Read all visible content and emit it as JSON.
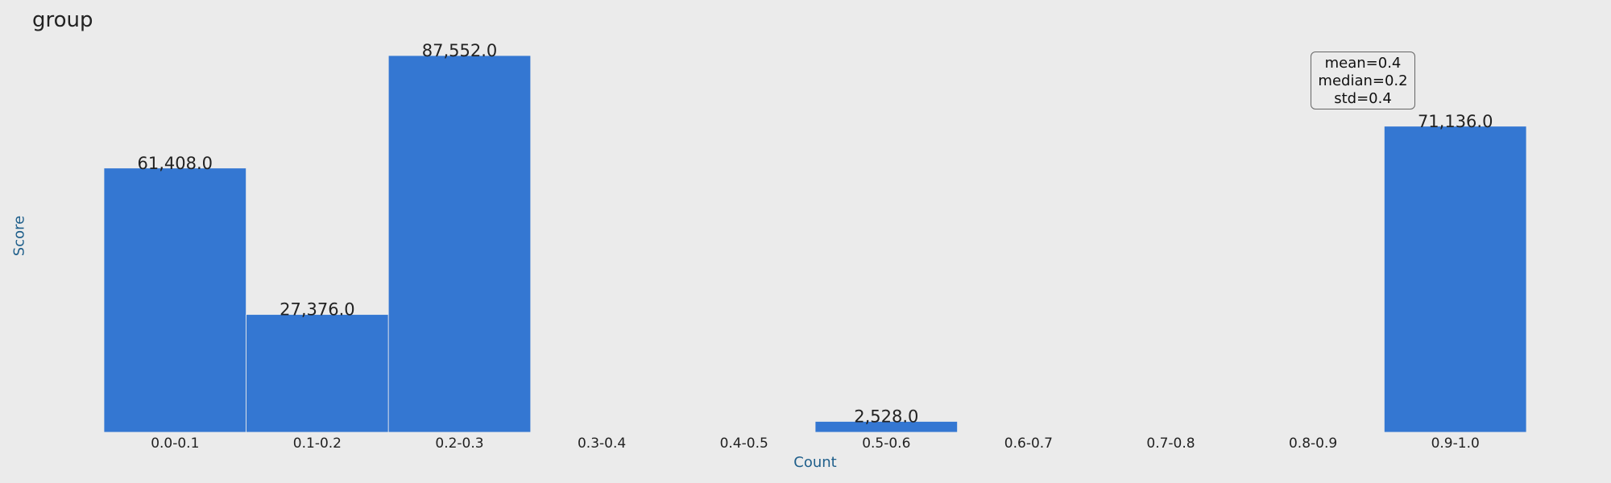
{
  "chart_data": {
    "type": "bar",
    "title": "group",
    "xlabel": "Count",
    "ylabel": "Score",
    "categories": [
      "0.0-0.1",
      "0.1-0.2",
      "0.2-0.3",
      "0.3-0.4",
      "0.4-0.5",
      "0.5-0.6",
      "0.6-0.7",
      "0.7-0.8",
      "0.8-0.9",
      "0.9-1.0"
    ],
    "values": [
      61408,
      27376,
      87552,
      0,
      0,
      2528,
      0,
      0,
      0,
      71136
    ],
    "data_labels": [
      "61,408.0",
      "27,376.0",
      "87,552.0",
      "",
      "",
      "2,528.0",
      "",
      "",
      "",
      "71,136.0"
    ],
    "ylim": [
      0,
      87552
    ],
    "grid": false,
    "legend": "none",
    "annotations": {
      "stats": [
        "mean=0.4",
        "median=0.2",
        "std=0.4"
      ]
    },
    "colors": {
      "bar": "#3477D2",
      "background": "#EBEBEB",
      "axis_label": "#1F5F8B",
      "text": "#222222"
    }
  }
}
